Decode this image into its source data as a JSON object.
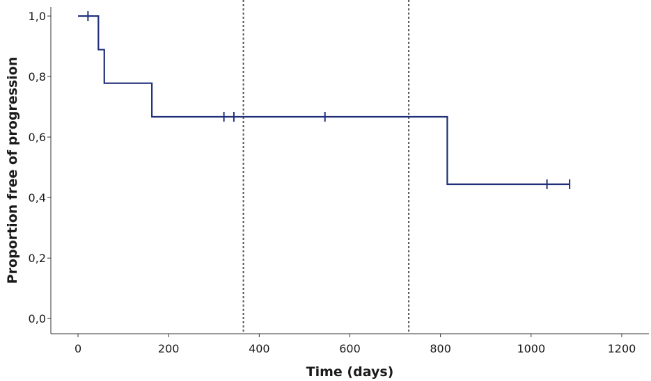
{
  "chart_data": {
    "type": "line",
    "subtype": "kaplan-meier-step",
    "title": "",
    "xlabel": "Time (days)",
    "ylabel": "Proportion free of progression",
    "xlim": [
      -60,
      1260
    ],
    "ylim": [
      -0.05,
      1.03
    ],
    "x_ticks": [
      0,
      200,
      400,
      600,
      800,
      1000,
      1200
    ],
    "x_tick_labels": [
      "0",
      "200",
      "400",
      "600",
      "800",
      "1000",
      "1200"
    ],
    "y_ticks": [
      0.0,
      0.2,
      0.4,
      0.6,
      0.8,
      1.0
    ],
    "y_tick_labels": [
      "0,0",
      "0,2",
      "0,4",
      "0,6",
      "0,8",
      "1,0"
    ],
    "grid": false,
    "legend": "none",
    "series": [
      {
        "color": "#1f2f7a",
        "steps": [
          {
            "x": 0,
            "y": 1.0
          },
          {
            "x": 45,
            "y": 0.889
          },
          {
            "x": 58,
            "y": 0.778
          },
          {
            "x": 163,
            "y": 0.667
          },
          {
            "x": 815,
            "y": 0.444
          },
          {
            "x": 1085,
            "y": 0.444
          }
        ],
        "censored": [
          {
            "x": 22,
            "y": 1.0
          },
          {
            "x": 322,
            "y": 0.667
          },
          {
            "x": 344,
            "y": 0.667
          },
          {
            "x": 545,
            "y": 0.667
          },
          {
            "x": 1035,
            "y": 0.444
          },
          {
            "x": 1085,
            "y": 0.444
          }
        ]
      }
    ],
    "reference_lines": [
      {
        "orientation": "vertical",
        "x": 365,
        "style": "dotted",
        "color": "#555555"
      },
      {
        "orientation": "vertical",
        "x": 730,
        "style": "dotted",
        "color": "#555555"
      }
    ]
  }
}
